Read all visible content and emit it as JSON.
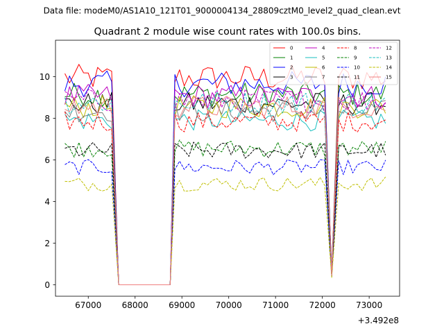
{
  "figure": {
    "suptitle": "Data file: modeM0/AS1A10_121T01_9000004134_28809cztM0_level2_quad_clean.evt",
    "offset_label": "+3.492e8"
  },
  "chart_data": {
    "type": "line",
    "title": "Quadrant 2 module wise count rates with 100.0s bins.",
    "xlabel": "",
    "ylabel": "",
    "x_offset": 349200000,
    "xlim": [
      66300,
      73650
    ],
    "ylim": [
      -0.55,
      11.75
    ],
    "xticks": [
      67000,
      68000,
      69000,
      70000,
      71000,
      72000,
      73000
    ],
    "yticks": [
      0,
      2,
      4,
      6,
      8,
      10
    ],
    "grid": false,
    "legend_position": "top-right",
    "legend_columns": 4,
    "segments": [
      {
        "start": 66500,
        "end": 67500,
        "step": 100
      },
      {
        "start": 67650,
        "end": 68750,
        "step": 100,
        "gap": true
      },
      {
        "start": 68850,
        "end": 72050,
        "step": 100
      },
      {
        "start": 72200,
        "end": 72200,
        "step": 100,
        "dip": true
      },
      {
        "start": 72350,
        "end": 73400,
        "step": 100
      }
    ],
    "series": [
      {
        "name": "0",
        "color": "#ff0000",
        "dash": "solid",
        "mean": 9.95,
        "dip": 0.6
      },
      {
        "name": "1",
        "color": "#008000",
        "dash": "solid",
        "mean": 9.15,
        "dip": 0.55
      },
      {
        "name": "2",
        "color": "#0000ff",
        "dash": "solid",
        "mean": 9.65,
        "dip": 0.5
      },
      {
        "name": "3",
        "color": "#000000",
        "dash": "solid",
        "mean": 8.7,
        "dip": 0.5
      },
      {
        "name": "4",
        "color": "#bf00bf",
        "dash": "solid",
        "mean": 9.05,
        "dip": 0.5
      },
      {
        "name": "5",
        "color": "#17bfbf",
        "dash": "solid",
        "mean": 7.9,
        "dip": 0.45
      },
      {
        "name": "6",
        "color": "#bfbf00",
        "dash": "solid",
        "mean": 8.55,
        "dip": 0.45
      },
      {
        "name": "7",
        "color": "#808080",
        "dash": "solid",
        "mean": 8.35,
        "dip": 0.45
      },
      {
        "name": "8",
        "color": "#ff0000",
        "dash": "dashed",
        "mean": 7.85,
        "dip": 0.45
      },
      {
        "name": "9",
        "color": "#008000",
        "dash": "dashed",
        "mean": 6.55,
        "dip": 0.4
      },
      {
        "name": "10",
        "color": "#0000ff",
        "dash": "dashed",
        "mean": 5.65,
        "dip": 0.4
      },
      {
        "name": "11",
        "color": "#000000",
        "dash": "dashed",
        "mean": 6.45,
        "dip": 0.4
      },
      {
        "name": "12",
        "color": "#bf00bf",
        "dash": "dashed",
        "mean": 8.85,
        "dip": 0.5
      },
      {
        "name": "13",
        "color": "#17bfbf",
        "dash": "dashed",
        "mean": 8.75,
        "dip": 0.5
      },
      {
        "name": "14",
        "color": "#bfbf00",
        "dash": "dashed",
        "mean": 4.85,
        "dip": 0.35
      },
      {
        "name": "15",
        "color": "#f08080",
        "dash": "solid",
        "mean": 8.55,
        "dip": 0.45
      }
    ]
  }
}
